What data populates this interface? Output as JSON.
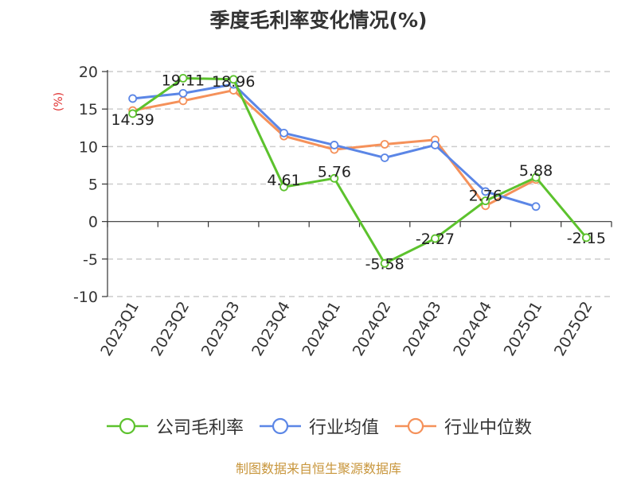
{
  "chart_data": {
    "type": "line",
    "title": "季度毛利率变化情况(%)",
    "ylabel": "(%)",
    "xlabel": "",
    "ylim": [
      -10,
      20
    ],
    "yticks": [
      20,
      15,
      10,
      5,
      0,
      -5,
      -10
    ],
    "grid": true,
    "legend_position": "bottom",
    "categories": [
      "2023Q1",
      "2023Q2",
      "2023Q3",
      "2023Q4",
      "2024Q1",
      "2024Q2",
      "2024Q3",
      "2024Q4",
      "2025Q1",
      "2025Q2"
    ],
    "series": [
      {
        "name": "公司毛利率",
        "color": "#5cc22d",
        "values": [
          14.39,
          19.11,
          18.96,
          4.61,
          5.76,
          -5.58,
          -2.27,
          2.76,
          5.88,
          -2.15
        ],
        "labels": [
          "14.39",
          "19.11",
          "18.96",
          "4.61",
          "5.76",
          "-5.58",
          "-2.27",
          "2.76",
          "5.88",
          "-2.15"
        ]
      },
      {
        "name": "行业均值",
        "color": "#5b86e6",
        "values": [
          16.4,
          17.1,
          18.3,
          11.8,
          10.2,
          8.5,
          10.2,
          4.0,
          2.0,
          null
        ]
      },
      {
        "name": "行业中位数",
        "color": "#f5915a",
        "values": [
          14.8,
          16.1,
          17.5,
          11.4,
          9.6,
          10.3,
          10.9,
          2.1,
          5.6,
          null
        ]
      }
    ]
  },
  "source": "制图数据来自恒生聚源数据库"
}
